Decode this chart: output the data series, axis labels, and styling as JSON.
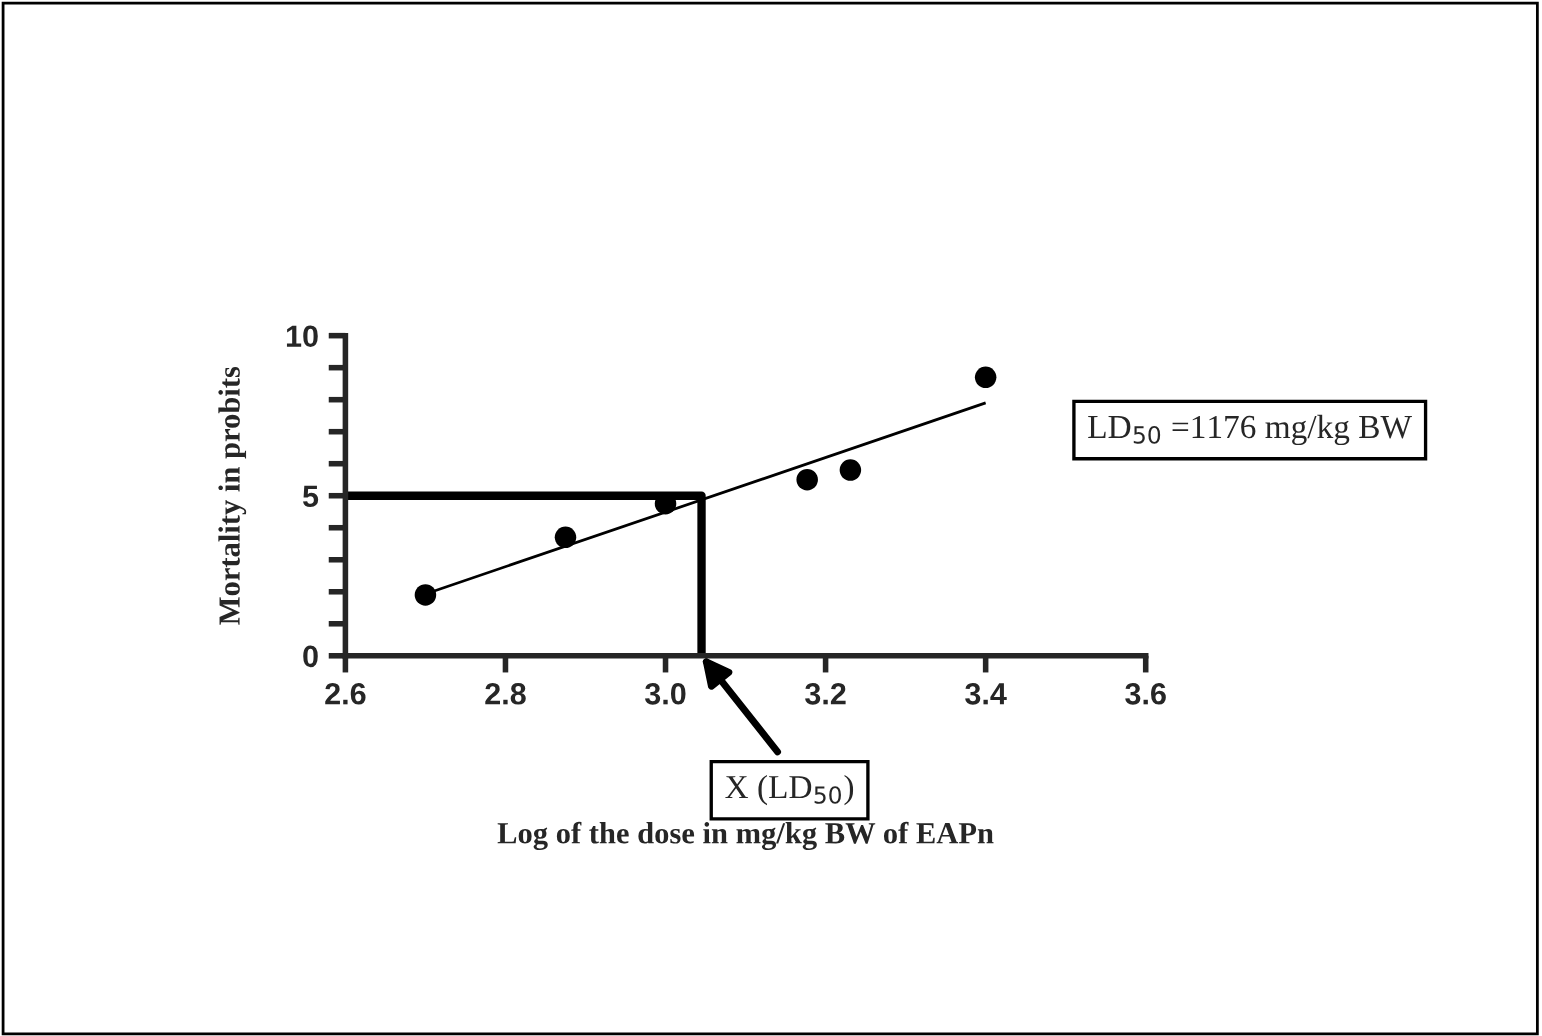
{
  "chart_data": {
    "type": "scatter",
    "xlabel": "Log of the dose in mg/kg BW of EAPn",
    "ylabel": "Mortality in probits",
    "series": [
      {
        "marker": "circle",
        "color": "#000000",
        "x": [
          2.7,
          2.875,
          3.0,
          3.177,
          3.231,
          3.4
        ],
        "values": [
          1.9,
          3.7,
          4.75,
          5.5,
          5.8,
          8.7
        ]
      },
      {
        "type": "line",
        "color": "#000000",
        "x": [
          2.7,
          3.4
        ],
        "values": [
          1.93,
          7.9
        ],
        "marker": "none"
      },
      {
        "type": "line",
        "color": "#000000",
        "x": [
          2.6,
          3.045,
          3.045
        ],
        "values": [
          5,
          5,
          0
        ],
        "marker": "none"
      }
    ],
    "annotations": [
      "LD$_{50}$ =1176 mg/kg BW",
      "X (LD$_{50}$)"
    ],
    "xlim": [
      2.6,
      3.6
    ],
    "xticks": [
      2.6,
      2.8,
      {
        "value": 3.0,
        "label": "3.0"
      },
      3.2,
      3.4,
      3.6
    ],
    "ylim": [
      0,
      10
    ],
    "yticks": [
      0,
      {
        "value": 1,
        "label": null
      },
      {
        "value": 2,
        "label": null
      },
      {
        "value": 3,
        "label": null
      },
      {
        "value": 4,
        "label": null
      },
      5,
      {
        "value": 6,
        "label": null
      },
      {
        "value": 7,
        "label": null
      },
      {
        "value": 8,
        "label": null
      },
      {
        "value": 9,
        "label": null
      },
      10
    ],
    "grid": false,
    "legend": false
  }
}
